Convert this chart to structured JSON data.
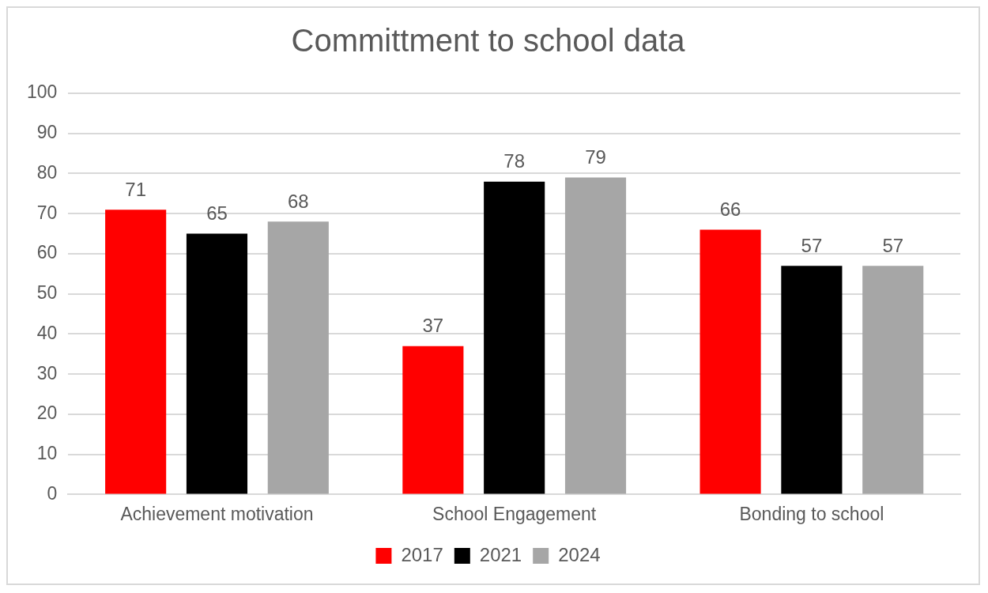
{
  "chart_data": {
    "type": "bar",
    "title": "Committment to school data",
    "categories": [
      "Achievement motivation",
      "School Engagement",
      "Bonding to school"
    ],
    "series": [
      {
        "name": "2017",
        "color": "#ff0000",
        "values": [
          71,
          37,
          66
        ]
      },
      {
        "name": "2021",
        "color": "#000000",
        "values": [
          65,
          78,
          57
        ]
      },
      {
        "name": "2024",
        "color": "#a6a6a6",
        "values": [
          68,
          79,
          57
        ]
      }
    ],
    "ylim": [
      0,
      100
    ],
    "yticks": [
      0,
      10,
      20,
      30,
      40,
      50,
      60,
      70,
      80,
      90,
      100
    ],
    "grid": "y",
    "legend": "bottom",
    "data_labels": true
  }
}
